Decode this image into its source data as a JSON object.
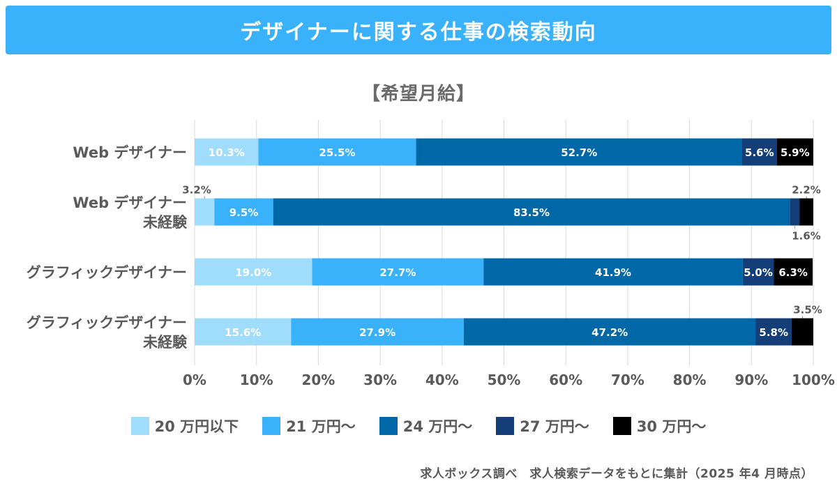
{
  "header": {
    "title": "デザイナーに関する仕事の検索動向"
  },
  "footnote": "求人ボックス調べ　求人検索データをもとに集計（2025 年4 月時点）",
  "chart_data": {
    "type": "bar",
    "orientation": "horizontal",
    "stacked": "percent",
    "title": "【希望月給】",
    "categories": [
      [
        "Web デザイナー"
      ],
      [
        "Web デザイナー",
        "未経験"
      ],
      [
        "グラフィックデザイナー"
      ],
      [
        "グラフィックデザイナー",
        "未経験"
      ]
    ],
    "series": [
      {
        "name": "20 万円以下",
        "color": "#a0dcfc",
        "values": [
          10.3,
          3.2,
          19.0,
          15.6
        ],
        "labels": [
          "10.3%",
          "3.2%",
          "19.0%",
          "15.6%"
        ]
      },
      {
        "name": "21 万円〜",
        "color": "#3ab1fb",
        "values": [
          25.5,
          9.5,
          27.7,
          27.9
        ],
        "labels": [
          "25.5%",
          "9.5%",
          "27.7%",
          "27.9%"
        ]
      },
      {
        "name": "24 万円〜",
        "color": "#0068a6",
        "values": [
          52.7,
          83.5,
          41.9,
          47.2
        ],
        "labels": [
          "52.7%",
          "83.5%",
          "41.9%",
          "47.2%"
        ]
      },
      {
        "name": "27 万円〜",
        "color": "#133e77",
        "values": [
          5.6,
          1.6,
          5.0,
          5.8
        ],
        "labels": [
          "5.6%",
          "1.6%",
          "5.0%",
          "5.8%"
        ]
      },
      {
        "name": "30 万円〜",
        "color": "#000000",
        "values": [
          5.9,
          2.2,
          6.3,
          3.5
        ],
        "labels": [
          "5.9%",
          "2.2%",
          "6.3%",
          "3.5%"
        ]
      }
    ],
    "outside_labels": [
      [
        0,
        0,
        0,
        0,
        0
      ],
      [
        -1,
        0,
        0,
        1,
        -1
      ],
      [
        0,
        0,
        0,
        0,
        0
      ],
      [
        0,
        0,
        0,
        0,
        -1
      ]
    ],
    "label_colors": [
      "#ffffff",
      "#ffffff",
      "#ffffff",
      "#ffffff",
      "#ffffff"
    ],
    "xlim": [
      0,
      100
    ],
    "xticks": [
      "0%",
      "10%",
      "20%",
      "30%",
      "40%",
      "50%",
      "60%",
      "70%",
      "80%",
      "90%",
      "100%"
    ],
    "grid": true,
    "legend_position": "bottom"
  }
}
